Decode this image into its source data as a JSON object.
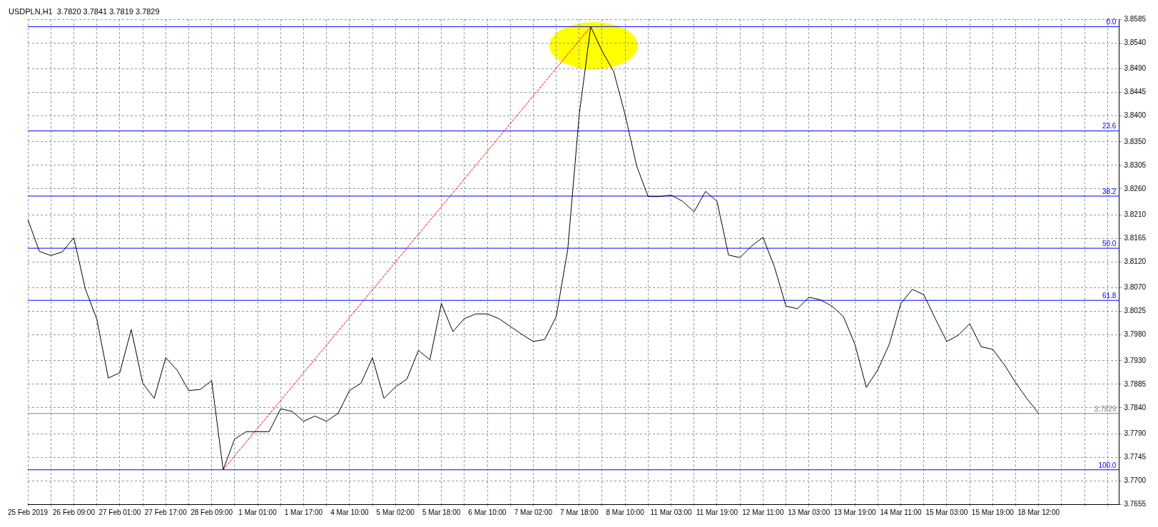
{
  "chart_data": {
    "type": "line",
    "title": "USDPLN,H1  3.7820 3.7841 3.7819 3.7829",
    "categories": [
      "25 Feb 2019",
      null,
      null,
      null,
      "26 Feb 09:00",
      null,
      null,
      null,
      "27 Feb 01:00",
      null,
      null,
      null,
      "27 Feb 17:00",
      null,
      null,
      null,
      "28 Feb 09:00",
      null,
      null,
      null,
      "1 Mar 01:00",
      null,
      null,
      null,
      "1 Mar 17:00",
      null,
      null,
      null,
      "4 Mar 10:00",
      null,
      null,
      null,
      "5 Mar 02:00",
      null,
      null,
      null,
      "5 Mar 18:00",
      null,
      null,
      null,
      "6 Mar 10:00",
      null,
      null,
      null,
      "7 Mar 02:00",
      null,
      null,
      null,
      "7 Mar 18:00",
      null,
      null,
      null,
      "8 Mar 10:00",
      null,
      null,
      null,
      "11 Mar 03:00",
      null,
      null,
      null,
      "11 Mar 19:00",
      null,
      null,
      null,
      "12 Mar 11:00",
      null,
      null,
      null,
      "13 Mar 03:00",
      null,
      null,
      null,
      "13 Mar 19:00",
      null,
      null,
      null,
      "14 Mar 11:00",
      null,
      null,
      null,
      "15 Mar 03:00",
      null,
      null,
      null,
      "15 Mar 19:00",
      null,
      null,
      null,
      "18 Mar 12:00",
      null,
      null,
      null,
      null,
      null,
      null,
      null
    ],
    "series": [
      {
        "type": "line",
        "color": "#000000",
        "values": [
          3.8201,
          3.814,
          3.8132,
          3.8139,
          3.8166,
          3.8068,
          3.801,
          3.7897,
          3.7907,
          3.799,
          3.7887,
          3.7858,
          3.7936,
          3.7912,
          3.7873,
          3.7875,
          3.7892,
          3.7721,
          3.778,
          3.7794,
          3.7794,
          3.7794,
          3.7838,
          3.7833,
          3.7814,
          3.7824,
          3.7814,
          3.7829,
          3.7873,
          3.7887,
          3.7936,
          3.7858,
          3.788,
          3.7895,
          3.795,
          3.7932,
          3.804,
          3.7986,
          3.8011,
          3.802,
          3.802,
          3.8011,
          3.7996,
          3.7981,
          3.7967,
          3.7971,
          3.8015,
          3.8143,
          3.8402,
          3.8571,
          3.8524,
          3.8485,
          3.8402,
          3.8304,
          3.8245,
          3.8245,
          3.8248,
          3.8236,
          3.8216,
          3.8255,
          3.8236,
          3.8133,
          3.8128,
          3.815,
          3.8167,
          3.811,
          3.8035,
          3.803,
          3.8052,
          3.8047,
          3.8035,
          3.8015,
          3.7962,
          3.7879,
          3.7913,
          3.7962,
          3.804,
          3.8067,
          3.8057,
          3.8011,
          3.7967,
          3.7979,
          3.8001,
          3.7957,
          3.7952,
          3.7923,
          3.7888,
          3.7857,
          3.7829,
          null,
          null,
          null,
          null,
          null,
          null,
          null
        ]
      },
      {
        "type": "line",
        "color": "#ff0000",
        "line_style": "dashed",
        "values": [
          null,
          null,
          null,
          null,
          null,
          null,
          null,
          null,
          null,
          null,
          null,
          null,
          null,
          null,
          null,
          null,
          null,
          3.7721,
          null,
          null,
          null,
          null,
          null,
          null,
          null,
          null,
          null,
          null,
          null,
          null,
          null,
          null,
          null,
          null,
          null,
          null,
          null,
          null,
          null,
          null,
          null,
          null,
          null,
          null,
          null,
          null,
          null,
          null,
          null,
          3.8571,
          null,
          null,
          null,
          null,
          null,
          null,
          null,
          null,
          null,
          null,
          null,
          null,
          null,
          null,
          null,
          null,
          null,
          null,
          null,
          null,
          null,
          null,
          null,
          null,
          null,
          null,
          null,
          null,
          null,
          null,
          null,
          null,
          null,
          null,
          null,
          null,
          null,
          null,
          null,
          null,
          null,
          null,
          null,
          null,
          null,
          null
        ]
      }
    ],
    "ylim": [
      3.7655,
      3.8585
    ],
    "yticks": [
      {
        "value": 3.7655,
        "label": "3.7655"
      },
      {
        "value": 3.77,
        "label": "3.7700"
      },
      {
        "value": 3.7745,
        "label": "3.7745"
      },
      {
        "value": 3.779,
        "label": "3.7790"
      },
      {
        "value": 3.784,
        "label": "3.7840"
      },
      {
        "value": 3.7885,
        "label": "3.7885"
      },
      {
        "value": 3.793,
        "label": "3.7930"
      },
      {
        "value": 3.798,
        "label": "3.7980"
      },
      {
        "value": 3.8025,
        "label": "3.8025"
      },
      {
        "value": 3.807,
        "label": "3.8070"
      },
      {
        "value": 3.812,
        "label": "3.8120"
      },
      {
        "value": 3.8165,
        "label": "3.8165"
      },
      {
        "value": 3.821,
        "label": "3.8210"
      },
      {
        "value": 3.826,
        "label": "3.8260"
      },
      {
        "value": 3.8305,
        "label": "3.8305"
      },
      {
        "value": 3.835,
        "label": "3.8350"
      },
      {
        "value": 3.84,
        "label": "3.8400"
      },
      {
        "value": 3.8445,
        "label": "3.8445"
      },
      {
        "value": 3.849,
        "label": "3.8490"
      },
      {
        "value": 3.854,
        "label": "3.8540"
      },
      {
        "value": 3.8585,
        "label": "3.8585"
      }
    ],
    "ref_lines": [
      {
        "axis": "y",
        "value": 3.8571,
        "color": "#0000ff"
      },
      {
        "axis": "y",
        "value": 3.8371,
        "color": "#0000ff"
      },
      {
        "axis": "y",
        "value": 3.8246,
        "color": "#0000ff"
      },
      {
        "axis": "y",
        "value": 3.8146,
        "color": "#0000ff"
      },
      {
        "axis": "y",
        "value": 3.8046,
        "color": "#0000ff"
      },
      {
        "axis": "y",
        "value": 3.7721,
        "color": "#0000ff"
      },
      {
        "axis": "y",
        "value": 3.7829,
        "label": "3.7829",
        "color": "#808080"
      }
    ],
    "annotations": [
      {
        "text": "0.0",
        "y": 3.8571
      },
      {
        "text": "23.6",
        "y": 3.8371
      },
      {
        "text": "38.2",
        "y": 3.8246
      },
      {
        "text": "50.0",
        "y": 3.8146
      },
      {
        "text": "61.8",
        "y": 3.8046
      },
      {
        "text": "100.0",
        "y": 3.7721
      }
    ],
    "grid": true
  }
}
